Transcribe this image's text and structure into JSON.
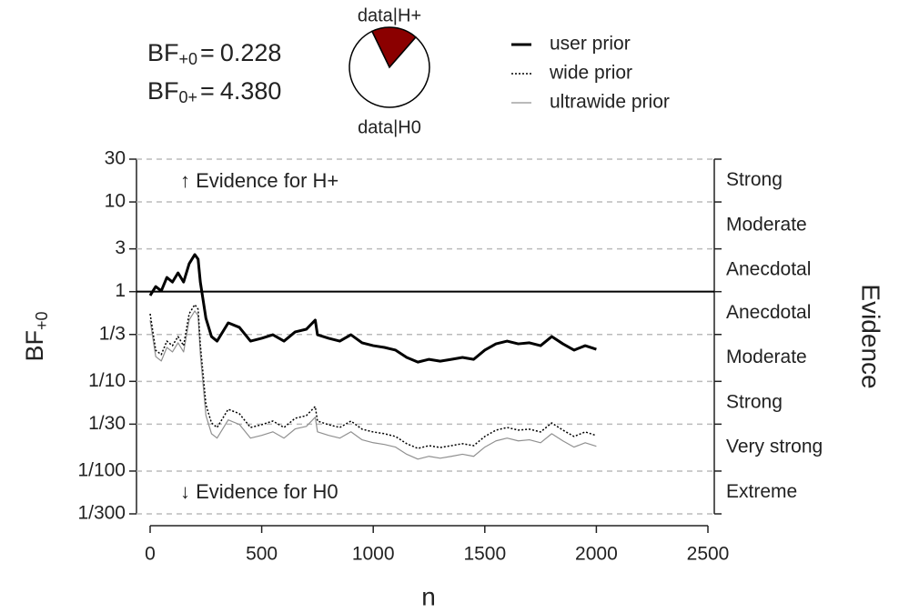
{
  "chart_data": {
    "type": "line",
    "xlabel": "n",
    "ylabel_base": "BF",
    "ylabel_sub": "+0",
    "right_label": "Evidence",
    "log_y": true,
    "grid": true,
    "reference_line": 1,
    "annotations": [
      "↑ Evidence for H+",
      "↓ Evidence for H0"
    ],
    "evidence_labels": [
      "Strong",
      "Moderate",
      "Anecdotal",
      "Anecdotal",
      "Moderate",
      "Strong",
      "Very strong",
      "Extreme"
    ],
    "bayes_factors": [
      {
        "base": "BF",
        "sub": "+0",
        "relation": "=",
        "value": 0.228
      },
      {
        "base": "BF",
        "sub": "0+",
        "relation": "=",
        "value": {
          "value": 4.38,
          "label": "4.380"
        }
      }
    ],
    "pie": {
      "labels": [
        "data|H+",
        "data|H0"
      ],
      "values": [
        0.186,
        0.814
      ],
      "colors": [
        "#8b0000",
        "#ffffff"
      ]
    },
    "legend": "top-right",
    "xlim": [
      0,
      2500
    ],
    "xticks": [
      0,
      500,
      1000,
      1500,
      2000,
      2500
    ],
    "ylim": [
      0.0033333,
      30
    ],
    "yticks": [
      30,
      10,
      3,
      1,
      {
        "value": 0.333333,
        "label": "1/3"
      },
      {
        "value": 0.1,
        "label": "1/10"
      },
      {
        "value": 0.0333333,
        "label": "1/30"
      },
      {
        "value": 0.01,
        "label": "1/100"
      },
      {
        "value": 0.0033333,
        "label": "1/300"
      }
    ],
    "x": [
      0,
      25,
      50,
      75,
      100,
      125,
      150,
      175,
      200,
      215,
      225,
      250,
      275,
      300,
      350,
      400,
      450,
      500,
      550,
      600,
      650,
      700,
      740,
      750,
      800,
      850,
      900,
      950,
      1000,
      1050,
      1100,
      1150,
      1200,
      1250,
      1300,
      1350,
      1400,
      1450,
      1500,
      1550,
      1600,
      1650,
      1700,
      1750,
      1800,
      1850,
      1900,
      1950,
      2000
    ],
    "series": [
      {
        "name": "user prior",
        "color": "#000000",
        "style": "solid",
        "width": 3,
        "values": [
          0.905,
          1.14,
          1.02,
          1.44,
          1.28,
          1.62,
          1.28,
          2.05,
          2.59,
          2.3,
          1.28,
          0.505,
          0.316,
          0.281,
          0.449,
          0.4,
          0.281,
          0.302,
          0.331,
          0.281,
          0.356,
          0.381,
          0.482,
          0.331,
          0.302,
          0.281,
          0.331,
          0.269,
          0.25,
          0.239,
          0.223,
          0.185,
          0.164,
          0.176,
          0.168,
          0.176,
          0.185,
          0.176,
          0.223,
          0.262,
          0.281,
          0.262,
          0.269,
          0.25,
          0.316,
          0.262,
          0.223,
          0.25,
          0.228
        ]
      },
      {
        "name": "wide prior",
        "color": "#000000",
        "style": "dotted",
        "width": 1.5,
        "values": [
          0.567,
          0.222,
          0.199,
          0.281,
          0.25,
          0.316,
          0.25,
          0.568,
          0.717,
          0.637,
          0.256,
          0.055,
          0.0344,
          0.0306,
          0.0489,
          0.0436,
          0.0306,
          0.0329,
          0.0361,
          0.0306,
          0.0388,
          0.0415,
          0.0525,
          0.0361,
          0.0329,
          0.0306,
          0.0361,
          0.0293,
          0.0273,
          0.0261,
          0.0243,
          0.0202,
          0.0179,
          0.0192,
          0.0183,
          0.0192,
          0.0202,
          0.0192,
          0.0243,
          0.0286,
          0.0306,
          0.0286,
          0.0293,
          0.0273,
          0.0344,
          0.0286,
          0.0243,
          0.0273,
          0.0249
        ]
      },
      {
        "name": "ultrawide prior",
        "color": "#909090",
        "style": "solid",
        "width": 1.2,
        "values": [
          0.48,
          0.189,
          0.169,
          0.239,
          0.213,
          0.269,
          0.213,
          0.483,
          0.609,
          0.541,
          0.2,
          0.0418,
          0.0261,
          0.0233,
          0.0372,
          0.0331,
          0.0233,
          0.025,
          0.0274,
          0.0233,
          0.0295,
          0.0315,
          0.0399,
          0.0274,
          0.025,
          0.0233,
          0.0274,
          0.0223,
          0.0207,
          0.0198,
          0.0185,
          0.0154,
          0.0136,
          0.0146,
          0.0139,
          0.0146,
          0.0154,
          0.0146,
          0.0185,
          0.0217,
          0.0233,
          0.0217,
          0.0223,
          0.0207,
          0.0261,
          0.0217,
          0.0185,
          0.0207,
          0.0189
        ]
      }
    ]
  }
}
